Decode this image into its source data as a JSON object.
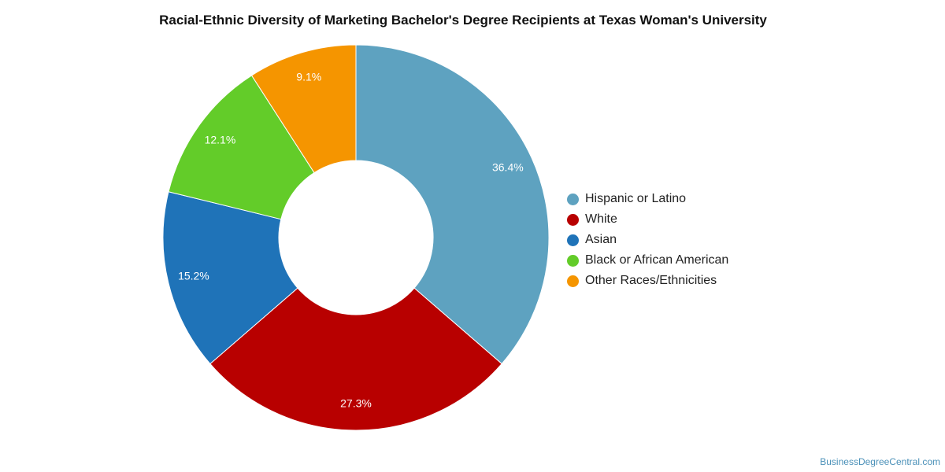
{
  "chart_data": {
    "type": "pie",
    "donut": true,
    "title": "Racial-Ethnic Diversity of Marketing Bachelor's Degree Recipients at Texas Woman's University",
    "legend_position": "right",
    "categories": [
      "Hispanic or Latino",
      "White",
      "Asian",
      "Black or African American",
      "Other Races/Ethnicities"
    ],
    "values": [
      36.4,
      27.3,
      15.2,
      12.1,
      9.1
    ],
    "value_labels": [
      "36.4%",
      "27.3%",
      "15.2%",
      "12.1%",
      "9.1%"
    ],
    "colors": [
      "#5ea2c0",
      "#b80000",
      "#1f73b8",
      "#63cc29",
      "#f59500"
    ]
  },
  "footer": {
    "credit": "BusinessDegreeCentral.com"
  }
}
